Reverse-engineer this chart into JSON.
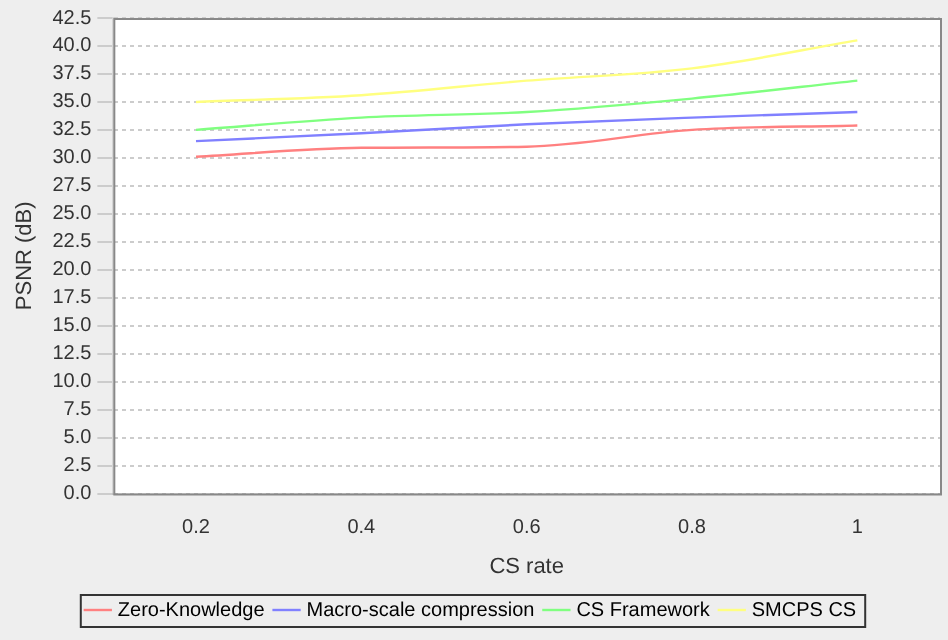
{
  "chart_data": {
    "type": "line",
    "xlabel": "CS rate",
    "ylabel": "PSNR (dB)",
    "categories": [
      "0.2",
      "0.4",
      "0.6",
      "0.8",
      "1"
    ],
    "series": [
      {
        "name": "Zero-Knowledge",
        "color": "#ff8080",
        "values": [
          30.1,
          30.9,
          31.0,
          32.5,
          32.9
        ]
      },
      {
        "name": "Macro-scale compression",
        "color": "#8080ff",
        "values": [
          31.5,
          32.2,
          33.0,
          33.6,
          34.1
        ]
      },
      {
        "name": "CS Framework",
        "color": "#80ff80",
        "values": [
          32.5,
          33.6,
          34.1,
          35.3,
          36.9
        ]
      },
      {
        "name": "SMCPS CS",
        "color": "#ffff80",
        "values": [
          35.0,
          35.6,
          36.9,
          38.0,
          40.5
        ]
      }
    ],
    "ylim": [
      0,
      42.5
    ],
    "yticks": [
      {
        "value": 0,
        "label": "0.0"
      },
      {
        "value": 2.5,
        "label": "2.5"
      },
      {
        "value": 5,
        "label": "5.0"
      },
      {
        "value": 7.5,
        "label": "7.5"
      },
      {
        "value": 10,
        "label": "10.0"
      },
      {
        "value": 12.5,
        "label": "12.5"
      },
      {
        "value": 15,
        "label": "15.0"
      },
      {
        "value": 17.5,
        "label": "17.5"
      },
      {
        "value": 20,
        "label": "20.0"
      },
      {
        "value": 22.5,
        "label": "22.5"
      },
      {
        "value": 25,
        "label": "25.0"
      },
      {
        "value": 27.5,
        "label": "27.5"
      },
      {
        "value": 30,
        "label": "30.0"
      },
      {
        "value": 32.5,
        "label": "32.5"
      },
      {
        "value": 35,
        "label": "35.0"
      },
      {
        "value": 37.5,
        "label": "37.5"
      },
      {
        "value": 40,
        "label": "40.0"
      },
      {
        "value": 42.5,
        "label": "42.5"
      }
    ],
    "grid": "y",
    "legend": "bottom",
    "marker": "none",
    "line_style": "solid"
  }
}
